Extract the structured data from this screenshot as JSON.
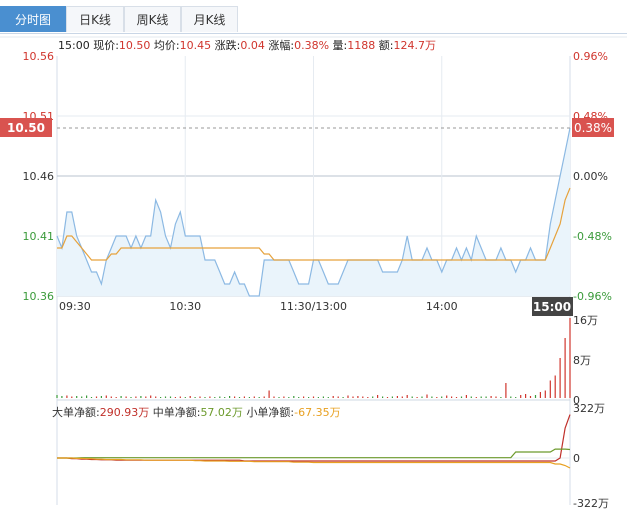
{
  "tabs": [
    {
      "label": "分时图",
      "active": true
    },
    {
      "label": "日K线",
      "active": false
    },
    {
      "label": "周K线",
      "active": false
    },
    {
      "label": "月K线",
      "active": false
    }
  ],
  "info": {
    "time": "15:00",
    "price_label": "现价:",
    "price": "10.50",
    "avg_label": "均价:",
    "avg": "10.45",
    "change_label": "涨跌:",
    "change": "0.04",
    "pct_label": "涨幅:",
    "pct": "0.38%",
    "vol_label": "量:",
    "vol": "1188",
    "amt_label": "额:",
    "amt": "124.7万"
  },
  "fund_flow": {
    "large_label": "大单净额:",
    "large": "290.93万",
    "medium_label": "中单净额:",
    "medium": "57.02万",
    "small_label": "小单净额:",
    "small": "-67.35万"
  },
  "colors": {
    "up": "#d0352d",
    "down": "#3a9a3a",
    "price_line": "#8cb9e3",
    "avg_line": "#e6a23c",
    "large": "#c0302a",
    "medium": "#6c9a2c",
    "small": "#e8a020",
    "tab_active": "#4a8fd0"
  },
  "chart_data": [
    {
      "type": "line",
      "name": "intraday-price",
      "y_ticks_left": [
        "10.56",
        "10.51",
        "10.46",
        "10.41",
        "10.36"
      ],
      "y_ticks_right": [
        "0.96%",
        "0.48%",
        "0.00%",
        "-0.48%",
        "-0.96%"
      ],
      "ylim": [
        10.36,
        10.56
      ],
      "prev_close": 10.46,
      "x_ticks": [
        "09:30",
        "10:30",
        "11:30/13:00",
        "14:00",
        "15:00"
      ],
      "current_price_label": "10.50",
      "current_pct_label": "0.38%",
      "series": [
        {
          "name": "price",
          "values": [
            10.41,
            10.4,
            10.43,
            10.43,
            10.41,
            10.4,
            10.39,
            10.38,
            10.38,
            10.37,
            10.39,
            10.4,
            10.41,
            10.41,
            10.41,
            10.4,
            10.41,
            10.4,
            10.41,
            10.41,
            10.44,
            10.43,
            10.41,
            10.4,
            10.42,
            10.43,
            10.41,
            10.41,
            10.41,
            10.41,
            10.39,
            10.39,
            10.39,
            10.38,
            10.37,
            10.37,
            10.38,
            10.37,
            10.37,
            10.36,
            10.36,
            10.36,
            10.39,
            10.39,
            10.39,
            10.39,
            10.39,
            10.39,
            10.38,
            10.37,
            10.37,
            10.37,
            10.39,
            10.39,
            10.38,
            10.37,
            10.37,
            10.37,
            10.38,
            10.39,
            10.39,
            10.39,
            10.39,
            10.39,
            10.39,
            10.39,
            10.38,
            10.38,
            10.38,
            10.38,
            10.39,
            10.41,
            10.39,
            10.39,
            10.39,
            10.4,
            10.39,
            10.39,
            10.38,
            10.39,
            10.39,
            10.4,
            10.39,
            10.4,
            10.39,
            10.41,
            10.4,
            10.39,
            10.39,
            10.39,
            10.4,
            10.39,
            10.39,
            10.38,
            10.39,
            10.39,
            10.4,
            10.39,
            10.39,
            10.39,
            10.42,
            10.44,
            10.46,
            10.48,
            10.5
          ]
        },
        {
          "name": "avg",
          "values": [
            10.4,
            10.4,
            10.41,
            10.41,
            10.405,
            10.4,
            10.395,
            10.39,
            10.39,
            10.39,
            10.39,
            10.395,
            10.395,
            10.4,
            10.4,
            10.4,
            10.4,
            10.4,
            10.4,
            10.4,
            10.4,
            10.4,
            10.4,
            10.4,
            10.4,
            10.4,
            10.4,
            10.4,
            10.4,
            10.4,
            10.4,
            10.4,
            10.4,
            10.4,
            10.4,
            10.4,
            10.4,
            10.4,
            10.4,
            10.4,
            10.4,
            10.4,
            10.395,
            10.395,
            10.39,
            10.39,
            10.39,
            10.39,
            10.39,
            10.39,
            10.39,
            10.39,
            10.39,
            10.39,
            10.39,
            10.39,
            10.39,
            10.39,
            10.39,
            10.39,
            10.39,
            10.39,
            10.39,
            10.39,
            10.39,
            10.39,
            10.39,
            10.39,
            10.39,
            10.39,
            10.39,
            10.39,
            10.39,
            10.39,
            10.39,
            10.39,
            10.39,
            10.39,
            10.39,
            10.39,
            10.39,
            10.39,
            10.39,
            10.39,
            10.39,
            10.39,
            10.39,
            10.39,
            10.39,
            10.39,
            10.39,
            10.39,
            10.39,
            10.39,
            10.39,
            10.39,
            10.39,
            10.39,
            10.39,
            10.39,
            10.4,
            10.41,
            10.42,
            10.44,
            10.45
          ]
        }
      ]
    },
    {
      "type": "bar",
      "name": "volume",
      "y_ticks_right": [
        "16万",
        "8万",
        "0"
      ],
      "ylim": [
        0,
        16
      ],
      "values": [
        0.6,
        0.4,
        0.5,
        0.3,
        0.4,
        0.3,
        0.5,
        0.2,
        0.3,
        0.4,
        0.5,
        0.3,
        0.2,
        0.4,
        0.3,
        0.2,
        0.3,
        0.4,
        0.3,
        0.5,
        0.3,
        0.2,
        0.3,
        0.3,
        0.2,
        0.3,
        0.2,
        0.4,
        0.2,
        0.3,
        0.2,
        0.3,
        0.2,
        0.3,
        0.2,
        0.4,
        0.3,
        0.2,
        0.3,
        0.2,
        0.3,
        0.2,
        0.3,
        1.5,
        0.3,
        0.2,
        0.3,
        0.2,
        0.4,
        0.2,
        0.3,
        0.2,
        0.3,
        0.2,
        0.3,
        0.2,
        0.4,
        0.3,
        0.2,
        0.5,
        0.3,
        0.4,
        0.3,
        0.2,
        0.3,
        0.6,
        0.3,
        0.2,
        0.3,
        0.4,
        0.3,
        0.6,
        0.3,
        0.2,
        0.3,
        0.7,
        0.3,
        0.2,
        0.3,
        0.5,
        0.3,
        0.2,
        0.3,
        0.6,
        0.3,
        0.2,
        0.3,
        0.3,
        0.4,
        0.3,
        0.2,
        3.0,
        0.3,
        0.2,
        0.6,
        0.8,
        0.4,
        0.6,
        1.2,
        1.5,
        3.5,
        4.5,
        8.0,
        12.0,
        16.0
      ],
      "colors": [
        "down",
        "down",
        "up",
        "up",
        "down",
        "down",
        "down",
        "down",
        "up",
        "down",
        "up",
        "up",
        "up",
        "down",
        "up",
        "down",
        "up",
        "down",
        "up",
        "up",
        "up",
        "down",
        "down",
        "down",
        "up",
        "up",
        "down",
        "up",
        "down",
        "up",
        "down",
        "up",
        "down",
        "down",
        "down",
        "down",
        "up",
        "down",
        "up",
        "down",
        "up",
        "down",
        "up",
        "up",
        "up",
        "down",
        "up",
        "down",
        "down",
        "down",
        "up",
        "down",
        "up",
        "down",
        "down",
        "down",
        "up",
        "up",
        "down",
        "up",
        "up",
        "up",
        "up",
        "up",
        "down",
        "up",
        "down",
        "up",
        "down",
        "up",
        "up",
        "up",
        "down",
        "up",
        "down",
        "up",
        "down",
        "up",
        "down",
        "up",
        "up",
        "up",
        "down",
        "up",
        "down",
        "up",
        "down",
        "down",
        "up",
        "up",
        "down",
        "up",
        "down",
        "down",
        "up",
        "up",
        "up",
        "down",
        "up",
        "up",
        "up",
        "up",
        "up",
        "up",
        "up"
      ]
    },
    {
      "type": "line",
      "name": "fund-flow",
      "y_ticks_right": [
        "322万",
        "0",
        "-322万"
      ],
      "ylim": [
        -322,
        322
      ],
      "series": [
        {
          "name": "大单净额",
          "values": [
            0,
            0,
            0,
            -5,
            -5,
            -8,
            -8,
            -10,
            -10,
            -12,
            -12,
            -12,
            -15,
            -15,
            -15,
            -15,
            -15,
            -15,
            -15,
            -15,
            -15,
            -15,
            -15,
            -15,
            -15,
            -15,
            -15,
            -15,
            -15,
            -15,
            -15,
            -15,
            -15,
            -15,
            -15,
            -15,
            -15,
            -15,
            -20,
            -20,
            -20,
            -20,
            -20,
            -20,
            -20,
            -20,
            -20,
            -20,
            -20,
            -20,
            -20,
            -20,
            -20,
            -20,
            -20,
            -20,
            -20,
            -20,
            -20,
            -20,
            -20,
            -20,
            -20,
            -20,
            -20,
            -20,
            -20,
            -20,
            -20,
            -20,
            -20,
            -20,
            -20,
            -20,
            -20,
            -20,
            -20,
            -20,
            -20,
            -20,
            -20,
            -20,
            -20,
            -20,
            -20,
            -20,
            -20,
            -20,
            -20,
            -20,
            -20,
            -20,
            -20,
            -20,
            -20,
            -20,
            -20,
            -20,
            -20,
            -20,
            -20,
            -20,
            0,
            200,
            290.93
          ]
        },
        {
          "name": "中单净额",
          "values": [
            0,
            0,
            0,
            0,
            0,
            2,
            2,
            2,
            2,
            2,
            2,
            2,
            2,
            2,
            2,
            2,
            2,
            2,
            2,
            2,
            2,
            2,
            2,
            2,
            2,
            2,
            2,
            2,
            2,
            2,
            2,
            2,
            2,
            2,
            2,
            2,
            2,
            2,
            2,
            2,
            2,
            2,
            2,
            2,
            2,
            2,
            2,
            2,
            2,
            2,
            2,
            2,
            2,
            2,
            2,
            2,
            2,
            2,
            2,
            2,
            2,
            2,
            2,
            2,
            2,
            2,
            2,
            2,
            2,
            2,
            2,
            2,
            2,
            2,
            2,
            2,
            2,
            2,
            2,
            2,
            2,
            2,
            2,
            2,
            2,
            2,
            2,
            2,
            2,
            2,
            2,
            2,
            2,
            40,
            40,
            40,
            40,
            40,
            40,
            40,
            40,
            60,
            60,
            60,
            57.02
          ]
        },
        {
          "name": "小单净额",
          "values": [
            0,
            0,
            0,
            0,
            -3,
            -3,
            -5,
            -5,
            -8,
            -8,
            -10,
            -10,
            -10,
            -10,
            -12,
            -12,
            -12,
            -12,
            -15,
            -15,
            -15,
            -15,
            -15,
            -15,
            -15,
            -15,
            -15,
            -15,
            -18,
            -18,
            -20,
            -20,
            -20,
            -20,
            -20,
            -22,
            -22,
            -22,
            -22,
            -22,
            -25,
            -25,
            -25,
            -25,
            -25,
            -25,
            -25,
            -25,
            -28,
            -28,
            -28,
            -28,
            -30,
            -30,
            -30,
            -30,
            -30,
            -30,
            -30,
            -30,
            -30,
            -30,
            -30,
            -30,
            -30,
            -30,
            -30,
            -30,
            -30,
            -30,
            -30,
            -30,
            -30,
            -30,
            -30,
            -30,
            -30,
            -30,
            -30,
            -30,
            -30,
            -30,
            -30,
            -30,
            -30,
            -30,
            -30,
            -30,
            -30,
            -30,
            -30,
            -30,
            -30,
            -30,
            -30,
            -30,
            -30,
            -30,
            -30,
            -30,
            -30,
            -40,
            -40,
            -50,
            -67.35
          ]
        }
      ]
    }
  ]
}
